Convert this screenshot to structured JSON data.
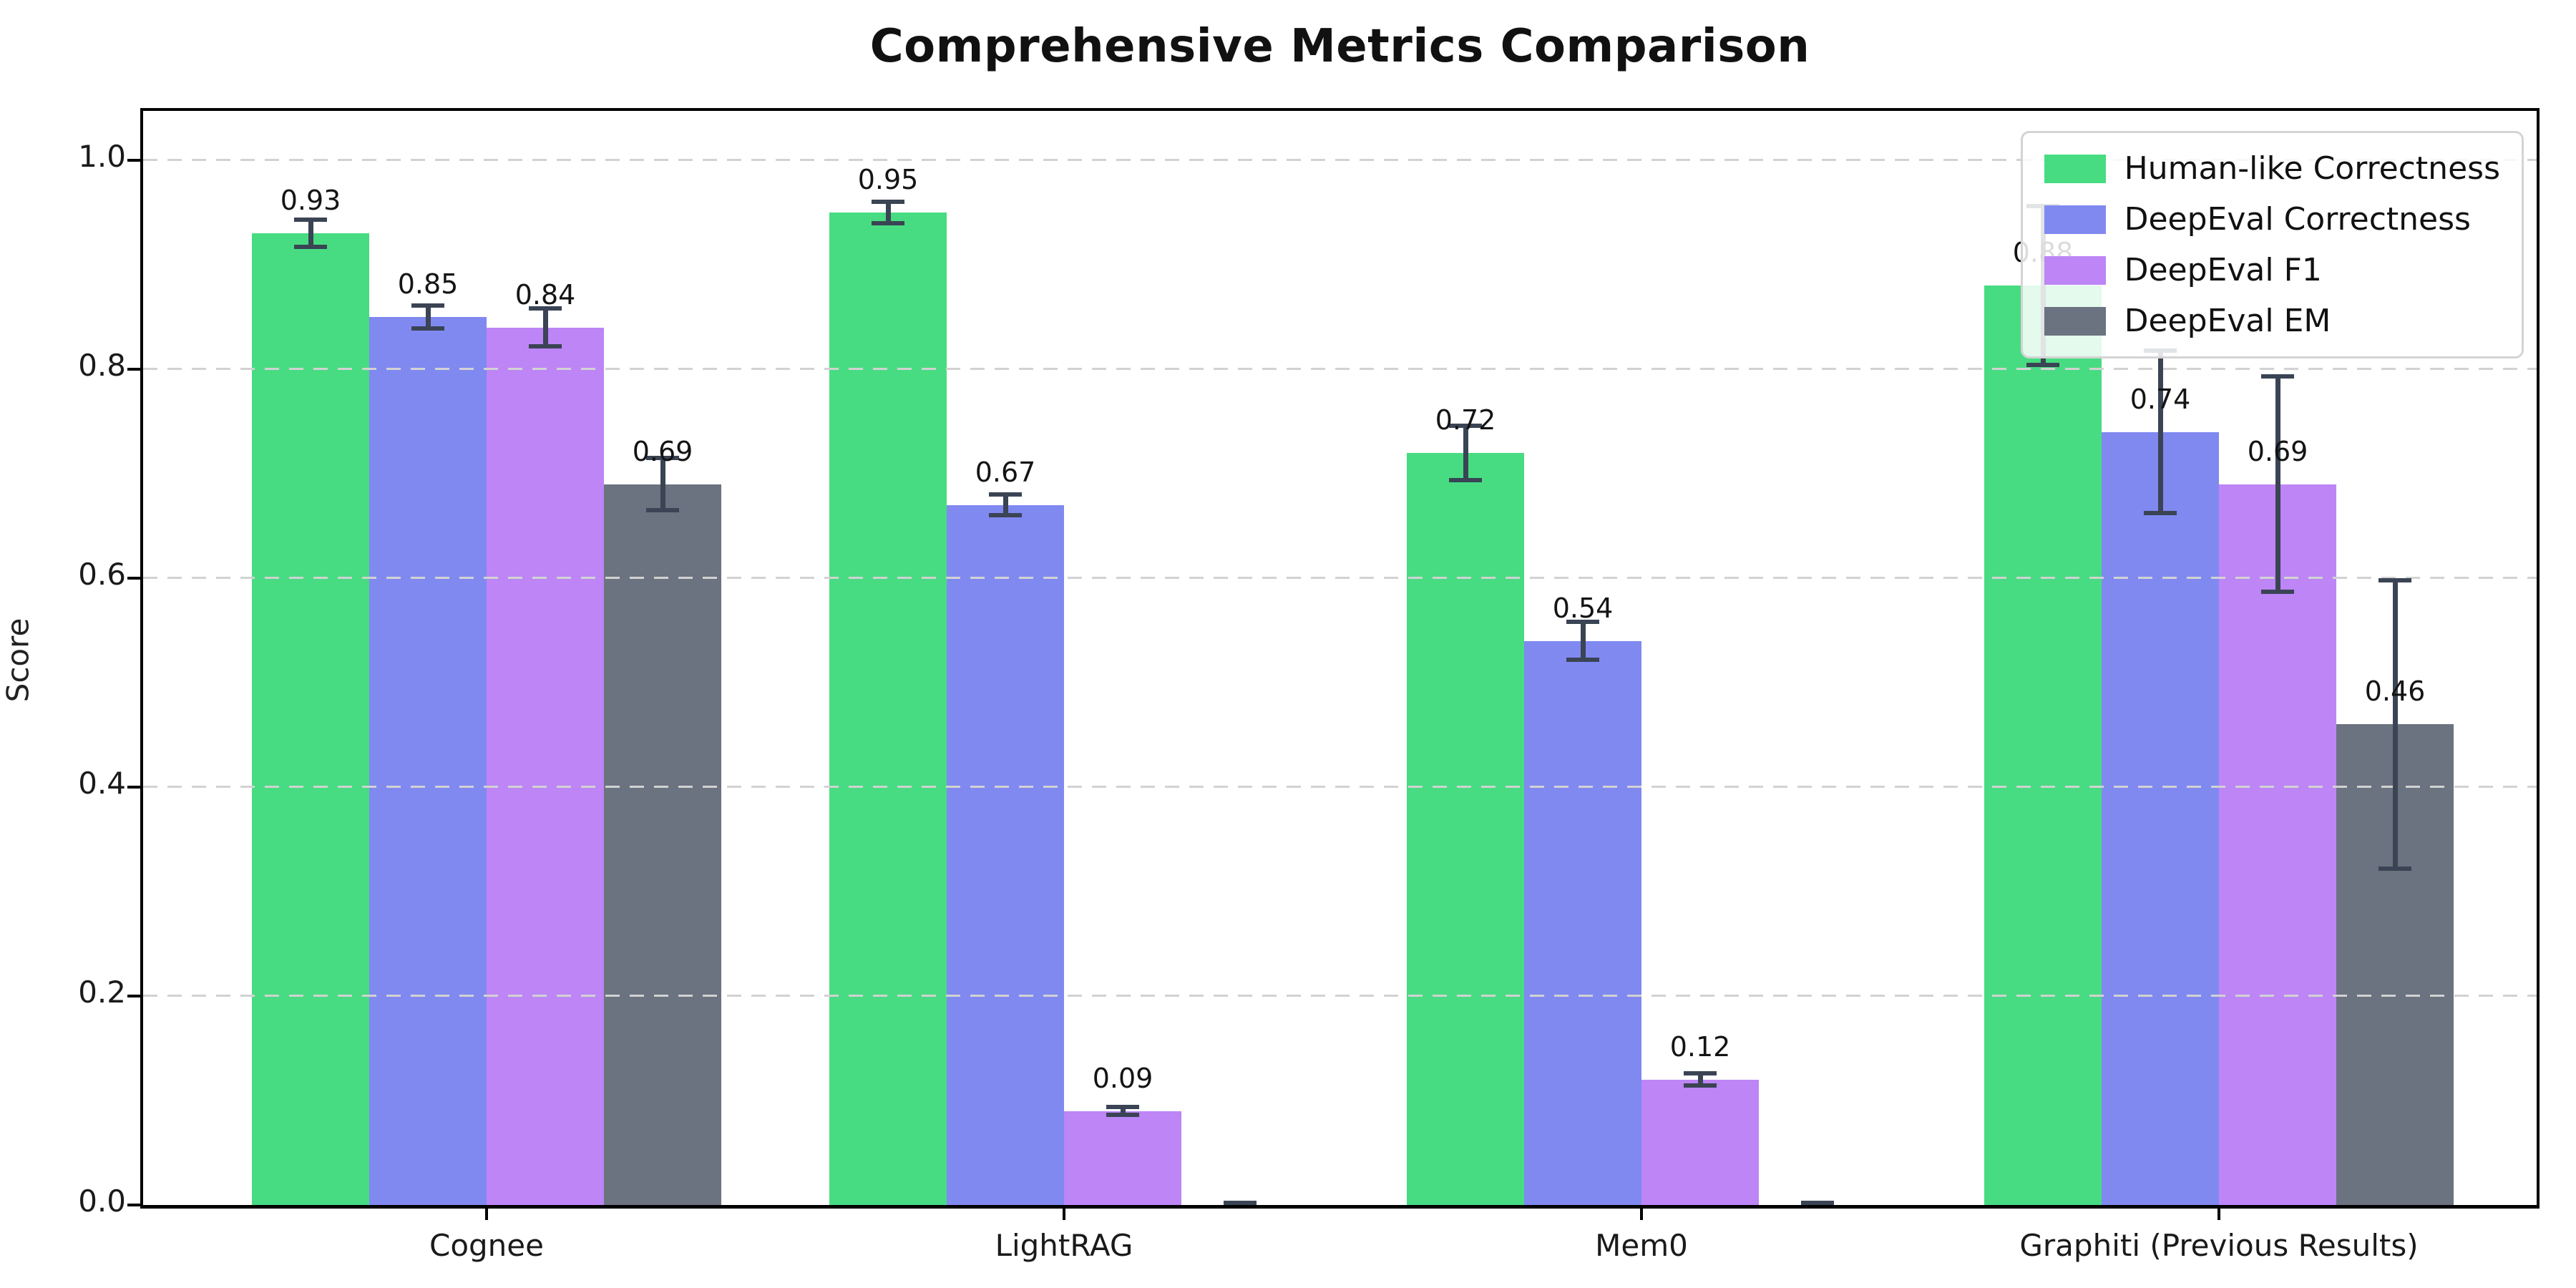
{
  "chart_data": {
    "type": "bar",
    "title": "Comprehensive Metrics Comparison",
    "xlabel": "",
    "ylabel": "Score",
    "categories": [
      "Cognee",
      "LightRAG",
      "Mem0",
      "Graphiti (Previous Results)"
    ],
    "series": [
      {
        "name": "Human-like Correctness",
        "color": "#47dc82",
        "values": [
          0.93,
          0.95,
          0.72,
          0.88
        ],
        "errors": [
          0.015,
          0.012,
          0.028,
          0.078
        ],
        "value_labels": [
          "0.93",
          "0.95",
          "0.72",
          "0.88"
        ]
      },
      {
        "name": "DeepEval Correctness",
        "color": "#8089f0",
        "values": [
          0.85,
          0.67,
          0.54,
          0.74
        ],
        "errors": [
          0.013,
          0.012,
          0.02,
          0.08
        ],
        "value_labels": [
          "0.85",
          "0.67",
          "0.54",
          "0.74"
        ]
      },
      {
        "name": "DeepEval F1",
        "color": "#bd85f6",
        "values": [
          0.84,
          0.09,
          0.12,
          0.69
        ],
        "errors": [
          0.02,
          0.006,
          0.008,
          0.105
        ],
        "value_labels": [
          "0.84",
          "0.09",
          "0.12",
          "0.69"
        ]
      },
      {
        "name": "DeepEval EM",
        "color": "#6b7280",
        "values": [
          0.69,
          0.0,
          0.0,
          0.46
        ],
        "errors": [
          0.027,
          0.004,
          0.004,
          0.14
        ],
        "value_labels": [
          "0.69",
          "",
          "",
          "0.46"
        ]
      }
    ],
    "yticks": [
      "0.0",
      "0.2",
      "0.4",
      "0.6",
      "0.8",
      "1.0"
    ],
    "ylim": [
      0,
      1.047
    ],
    "grid": "horizontal dashed, drawn over bars",
    "legend_position": "upper right",
    "error_bar_color": "#3a4454",
    "gridline_color": "#d2d2d2",
    "axis_color": "#000000"
  }
}
